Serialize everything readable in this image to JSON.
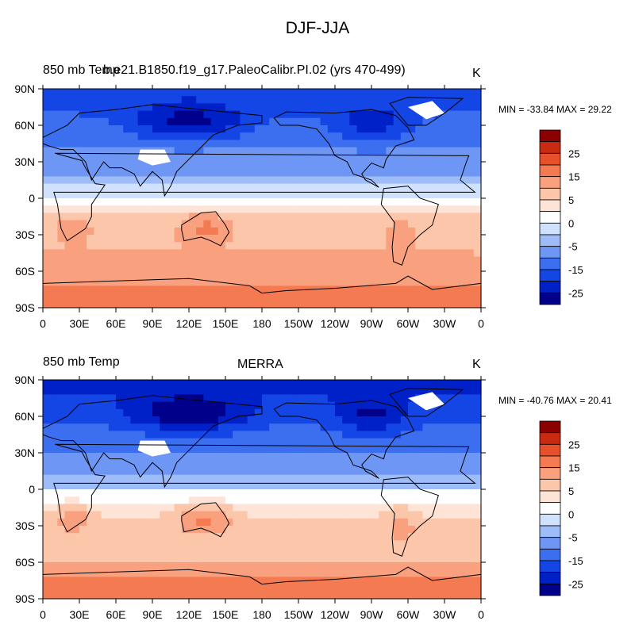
{
  "figure": {
    "title": "DJF-JJA",
    "colorbar_levels": [
      "25",
      "15",
      "5",
      "0",
      "-5",
      "-15",
      "-25"
    ],
    "lon_ticks": [
      "0",
      "30E",
      "60E",
      "90E",
      "120E",
      "150E",
      "180",
      "150W",
      "120W",
      "90W",
      "60W",
      "30W",
      "0"
    ],
    "lat_ticks": [
      "90N",
      "60N",
      "30N",
      "0",
      "30S",
      "60S",
      "90S"
    ],
    "palette": [
      "#00008b",
      "#0020c8",
      "#1446e6",
      "#3c6ef0",
      "#6e96f5",
      "#9ebcf8",
      "#cfe1fc",
      "#ffffff",
      "#fde4d6",
      "#fcc6aa",
      "#f9a07e",
      "#f47a52",
      "#e8502c",
      "#c82a12",
      "#8b0000"
    ]
  },
  "panels": [
    {
      "variable": "850 mb Temp",
      "case": "b.e21.B1850.f19_g17.PaleoCalibr.PI.02 (yrs 470-499)",
      "units": "K",
      "stats": "MIN = -33.84 MAX =  29.22"
    },
    {
      "variable": "850 mb Temp",
      "case": "MERRA",
      "units": "K",
      "stats": "MIN = -40.76 MAX =  20.41"
    }
  ],
  "chart_data": [
    {
      "type": "heatmap",
      "title": "850 mb Temp — b.e21.B1850.f19_g17.PaleoCalibr.PI.02 (yrs 470-499)",
      "variable": "DJF minus JJA 850 mb temperature",
      "units": "K",
      "min": -33.84,
      "max": 29.22,
      "xlim": [
        0,
        360
      ],
      "ylim": [
        -90,
        90
      ],
      "contour_levels": [
        -30,
        -25,
        -20,
        -15,
        -10,
        -5,
        -2.5,
        0,
        2.5,
        5,
        10,
        15,
        20,
        25,
        30
      ]
    },
    {
      "type": "heatmap",
      "title": "850 mb Temp — MERRA",
      "variable": "DJF minus JJA 850 mb temperature",
      "units": "K",
      "min": -40.76,
      "max": 20.41,
      "xlim": [
        0,
        360
      ],
      "ylim": [
        -90,
        90
      ],
      "contour_levels": [
        -30,
        -25,
        -20,
        -15,
        -10,
        -5,
        -2.5,
        0,
        2.5,
        5,
        10,
        15,
        20,
        25,
        30
      ]
    }
  ]
}
